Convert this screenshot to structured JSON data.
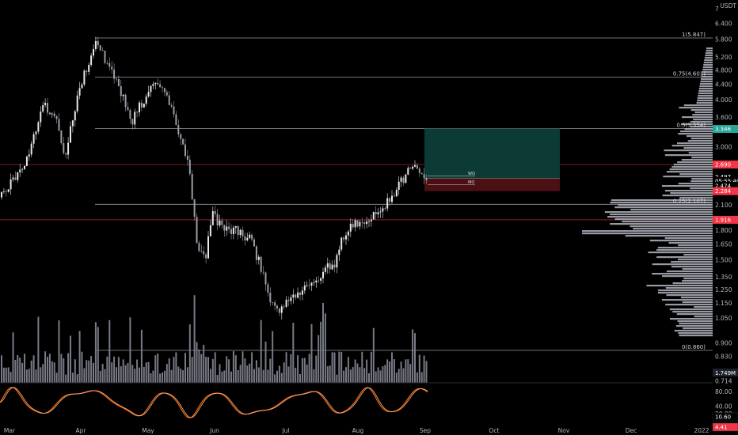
{
  "price_axis": {
    "currency": "USDT",
    "ticks": [
      "7",
      "6.400",
      "5.800",
      "5.200",
      "4.800",
      "4.400",
      "4.000",
      "3.600",
      "3.000",
      "2.100",
      "1.800",
      "1.650",
      "1.500",
      "1.350",
      "1.250",
      "1.150",
      "1.050",
      "0.900",
      "0.830",
      "0.714"
    ],
    "tick_values": [
      7.0,
      6.4,
      5.8,
      5.2,
      4.8,
      4.4,
      4.0,
      3.6,
      3.0,
      2.1,
      1.8,
      1.65,
      1.5,
      1.35,
      1.25,
      1.15,
      1.05,
      0.9,
      0.83,
      0.714
    ],
    "scale": "log"
  },
  "price_badges": [
    {
      "label": "3.346",
      "value": 3.346,
      "color": "#26a69a"
    },
    {
      "label": "2.690",
      "value": 2.69,
      "color": "#f23645"
    },
    {
      "label": "2.497",
      "value": 2.497,
      "color": "#000000"
    },
    {
      "label": "05:55:40",
      "value": 2.43,
      "color": "#000000"
    },
    {
      "label": "2.474",
      "value": 2.36,
      "color": "#000000"
    },
    {
      "label": "2.284",
      "value": 2.284,
      "color": "#f23645"
    },
    {
      "label": "1.916",
      "value": 1.916,
      "color": "#f23645"
    },
    {
      "label": "1.749M",
      "value": 0,
      "color": "#1e222d"
    }
  ],
  "fib_levels": [
    {
      "label": "1(5.847)",
      "value": 5.847
    },
    {
      "label": "0.75(4.601)",
      "value": 4.601
    },
    {
      "label": "0.5(3.354)",
      "value": 3.354
    },
    {
      "label": "0.25(2.107)",
      "value": 2.107
    },
    {
      "label": "0(0.860)",
      "value": 0.86
    }
  ],
  "horizontal_lines": [
    {
      "name": "resistance",
      "value": 2.69,
      "color": "#a3262f"
    },
    {
      "name": "support",
      "value": 1.916,
      "color": "#a3262f"
    }
  ],
  "position_tool": {
    "entry": 2.474,
    "target": 3.354,
    "stop": 2.284,
    "labels": {
      "upper": "WO",
      "lower": "MO"
    },
    "profit_color": "#0b3b34",
    "loss_color": "#4a1014"
  },
  "oscillator_axis": {
    "ticks": [
      "80.00",
      "40.00",
      "20.00"
    ],
    "values": [
      80,
      40,
      20
    ],
    "badges": [
      {
        "label": "10.60",
        "value": 10.6
      },
      {
        "label": "4.41",
        "value": 4.41
      }
    ]
  },
  "time_axis": {
    "labels": [
      "Mar",
      "Apr",
      "May",
      "Jun",
      "Jul",
      "Aug",
      "Sep",
      "Oct",
      "Nov",
      "Dec",
      "2022"
    ]
  },
  "colors": {
    "bg": "#000000",
    "candle": "#d1d4dc",
    "volume": "#787b86",
    "osc_k": "#ff6d00",
    "osc_d": "#f7a880",
    "grid_line": "#9598a1",
    "profile": "#b2b5be"
  }
}
